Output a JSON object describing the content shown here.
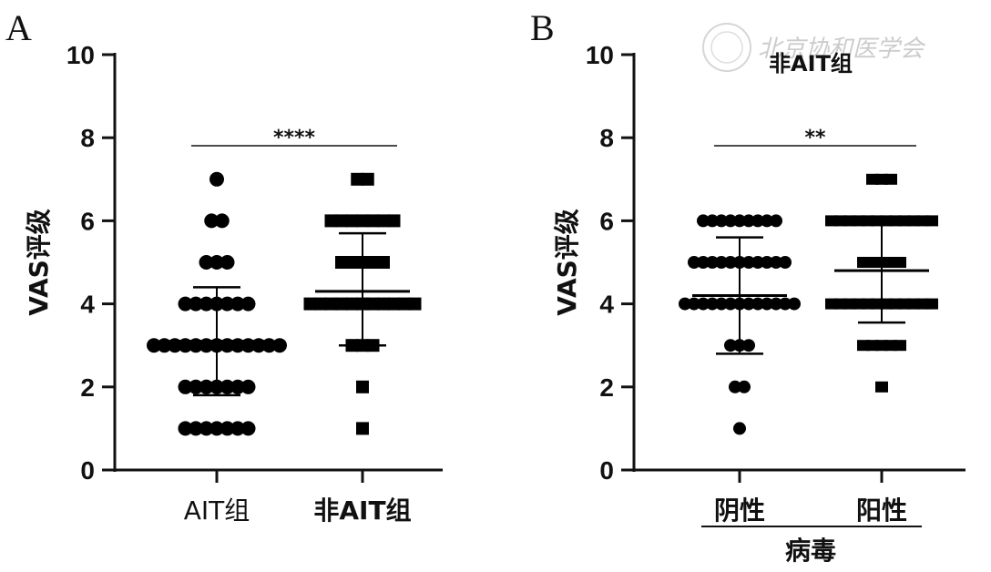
{
  "watermark": "北京协和医学会",
  "chart_data": [
    {
      "panel": "A",
      "type": "scatter",
      "title": "",
      "xlabel": "",
      "ylabel": "VAS评级",
      "ylim": [
        0,
        10
      ],
      "yticks": [
        0,
        2,
        4,
        6,
        8,
        10
      ],
      "categories": [
        "AIT组",
        "非AIT组"
      ],
      "significance": "****",
      "groups": [
        {
          "category": "AIT组",
          "mean": 3.1,
          "sd_low": 1.8,
          "sd_high": 4.4,
          "points": [
            {
              "y": 1,
              "n": 7
            },
            {
              "y": 2,
              "n": 7
            },
            {
              "y": 3,
              "n": 13
            },
            {
              "y": 4,
              "n": 7
            },
            {
              "y": 5,
              "n": 3
            },
            {
              "y": 6,
              "n": 2
            },
            {
              "y": 7,
              "n": 1
            }
          ]
        },
        {
          "category": "非AIT组",
          "mean": 4.3,
          "sd_low": 3.0,
          "sd_high": 5.7,
          "points": [
            {
              "y": 1,
              "n": 1
            },
            {
              "y": 2,
              "n": 1
            },
            {
              "y": 3,
              "n": 3
            },
            {
              "y": 4,
              "n": 11
            },
            {
              "y": 5,
              "n": 5
            },
            {
              "y": 6,
              "n": 7
            },
            {
              "y": 7,
              "n": 2
            }
          ]
        }
      ]
    },
    {
      "panel": "B",
      "type": "scatter",
      "title": "非AIT组",
      "xlabel": "病毒",
      "ylabel": "VAS评级",
      "ylim": [
        0,
        10
      ],
      "yticks": [
        0,
        2,
        4,
        6,
        8,
        10
      ],
      "categories": [
        "阴性",
        "阳性"
      ],
      "significance": "**",
      "groups": [
        {
          "category": "阴性",
          "mean": 4.2,
          "sd_low": 2.8,
          "sd_high": 5.6,
          "points": [
            {
              "y": 1,
              "n": 1
            },
            {
              "y": 2,
              "n": 2
            },
            {
              "y": 3,
              "n": 3
            },
            {
              "y": 4,
              "n": 13
            },
            {
              "y": 5,
              "n": 11
            },
            {
              "y": 6,
              "n": 9
            }
          ]
        },
        {
          "category": "阳性",
          "mean": 4.8,
          "sd_low": 3.55,
          "sd_high": 5.95,
          "points": [
            {
              "y": 2,
              "n": 1
            },
            {
              "y": 3,
              "n": 5
            },
            {
              "y": 4,
              "n": 12
            },
            {
              "y": 5,
              "n": 5
            },
            {
              "y": 6,
              "n": 12
            },
            {
              "y": 7,
              "n": 3
            }
          ]
        }
      ]
    }
  ]
}
